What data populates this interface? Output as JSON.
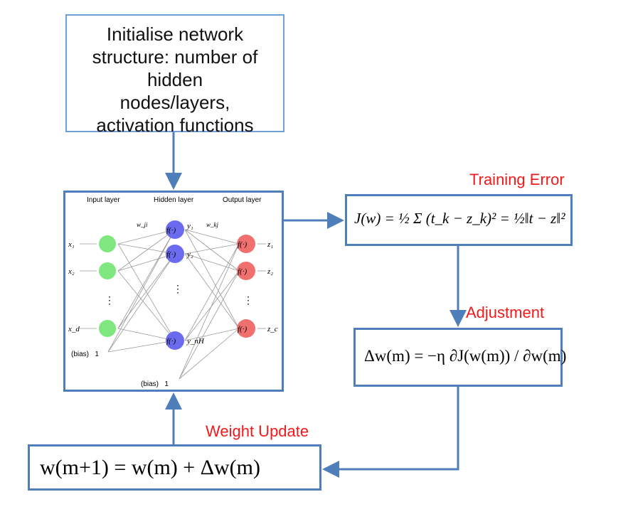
{
  "init_box": {
    "text": "Initialise network\nstructure: number of\nhidden\nnodes/layers,\nactivation functions"
  },
  "labels": {
    "training_error": "Training Error",
    "adjustment": "Adjustment",
    "weight_update": "Weight Update"
  },
  "network": {
    "layer_titles": [
      "Input layer",
      "Hidden layer",
      "Output layer"
    ],
    "inputs": [
      "x₁",
      "x₂",
      "x_d"
    ],
    "hidden_node_label": "f(·)",
    "hidden_outputs": [
      "y₁",
      "y₂",
      "y_nH"
    ],
    "output_node_label": "f(·)",
    "outputs": [
      "z₁",
      "z₂",
      "z_c"
    ],
    "weight_labels": [
      "w_ji",
      "w_kj"
    ],
    "bias_input": "(bias)   1",
    "bias_hidden": "(bias)   1",
    "ellipsis": "⋮"
  },
  "formulas": {
    "training_error": "J(w) = ½ Σ (t_k − z_k)² = ½‖t − z‖²",
    "adjustment": "Δw(m) = −η ∂J(w(m)) / ∂w(m)",
    "weight_update": "w(m+1) = w(m) + Δw(m)"
  },
  "colors": {
    "box_border": "#4f7fba",
    "init_border": "#6f9fd6",
    "label_red": "#f2191a",
    "input_node": "#7ee87e",
    "hidden_node": "#6b6bf0",
    "output_node": "#f07070"
  }
}
